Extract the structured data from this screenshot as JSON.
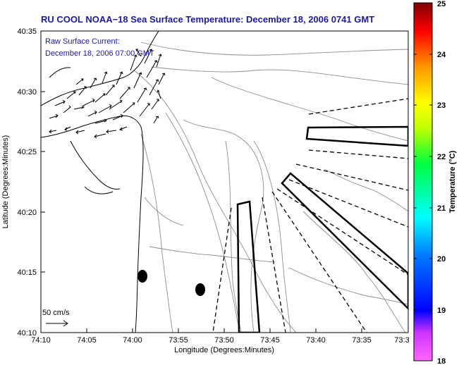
{
  "map": {
    "title": "RU COOL  NOAA−18  Sea Surface Temperature:  December 18, 2006 0741 GMT",
    "inset_line1": "Raw Surface Current:",
    "inset_line2": "December 18, 2006 07:00 GMT",
    "scale_label": "50 cm/s",
    "xlabel": "Longitude (Degrees:Minutes)",
    "ylabel": "Latitude (Degrees:Minutes)",
    "x_ticks": [
      "74:10",
      "74:05",
      "74:00",
      "73:55",
      "73:50",
      "73:45",
      "73:40",
      "73:35",
      "73:3"
    ],
    "y_ticks": [
      "40:35",
      "40:30",
      "40:25",
      "40:20",
      "40:15",
      "40:10"
    ],
    "lat_range": [
      "40:10",
      "40:35"
    ],
    "lon_range": [
      "74:10",
      "73:30"
    ],
    "colors": {
      "title": "#1a1a9e",
      "coastline": "#000000",
      "bathymetry": "#8c8c8c",
      "tracks": "#000000"
    },
    "icons": [
      "current-vector-arrow",
      "scale-arrow",
      "buoy-marker"
    ]
  },
  "colorbar": {
    "label": "Temperature (°C)",
    "ticks": [
      "25",
      "24",
      "23",
      "22",
      "21",
      "20",
      "19",
      "18"
    ],
    "range": [
      18,
      25
    ],
    "colors": [
      "#ff00ff",
      "#0000ff",
      "#00ffff",
      "#00ff00",
      "#ffff00",
      "#ff8000",
      "#ff0000",
      "#8b0000"
    ]
  }
}
